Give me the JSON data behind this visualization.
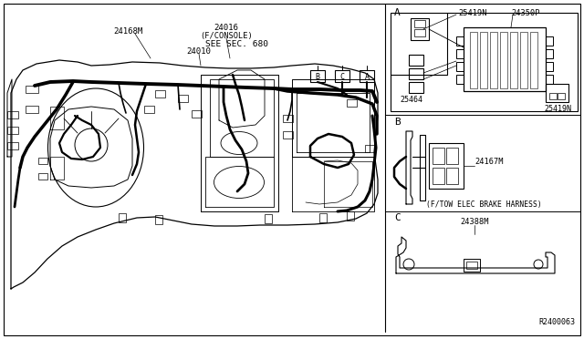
{
  "bg_color": "#ffffff",
  "lc": "#000000",
  "fig_width": 6.4,
  "fig_height": 3.72,
  "dpi": 100,
  "labels": {
    "see_sec": "SEE SEC. 680",
    "part_24010": "24010",
    "part_24016": "24016",
    "part_console": "(F/CONSOLE)",
    "part_24168M": "24168M",
    "part_25419N_top": "25419N",
    "part_24350P": "24350P",
    "part_25464": "25464",
    "part_25419N_bot": "25419N",
    "part_24167M": "24167M",
    "brake_harness": "(F/TOW ELEC BRAKE HARNESS)",
    "part_24388M": "24388M",
    "ref_A": "A",
    "ref_B": "B",
    "ref_C": "C",
    "diagram_ref": "R2400063"
  }
}
